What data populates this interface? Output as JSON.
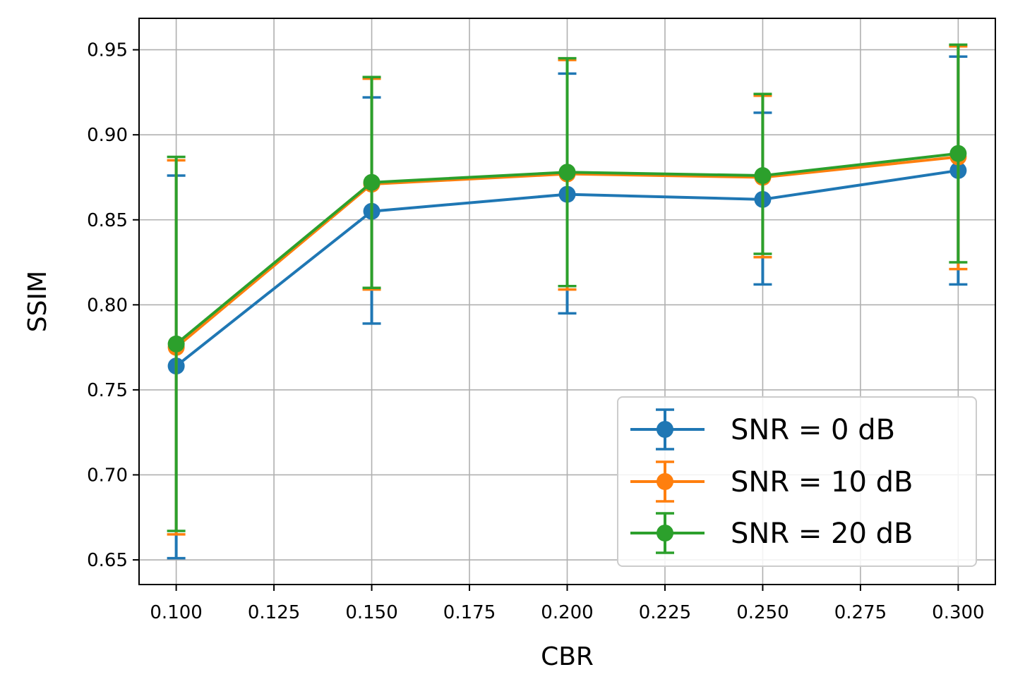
{
  "chart_data": {
    "type": "line",
    "title": "",
    "xlabel": "CBR",
    "ylabel": "SSIM",
    "xlim": [
      0.0905,
      0.3095
    ],
    "ylim": [
      0.6355,
      0.9685
    ],
    "xticks": [
      0.1,
      0.125,
      0.15,
      0.175,
      0.2,
      0.225,
      0.25,
      0.275,
      0.3
    ],
    "xtick_labels": [
      "0.100",
      "0.125",
      "0.150",
      "0.175",
      "0.200",
      "0.225",
      "0.250",
      "0.275",
      "0.300"
    ],
    "yticks": [
      0.65,
      0.7,
      0.75,
      0.8,
      0.85,
      0.9,
      0.95
    ],
    "ytick_labels": [
      "0.65",
      "0.70",
      "0.75",
      "0.80",
      "0.85",
      "0.90",
      "0.95"
    ],
    "grid": true,
    "legend_position": "lower-right",
    "x": [
      0.1,
      0.15,
      0.2,
      0.25,
      0.3
    ],
    "series": [
      {
        "name": "SNR = 0 dB",
        "color": "#1f77b4",
        "values": [
          0.764,
          0.855,
          0.865,
          0.862,
          0.879
        ],
        "err_low": [
          0.651,
          0.789,
          0.795,
          0.812,
          0.812
        ],
        "err_high": [
          0.876,
          0.922,
          0.936,
          0.913,
          0.946
        ]
      },
      {
        "name": "SNR = 10 dB",
        "color": "#ff7f0e",
        "values": [
          0.775,
          0.871,
          0.877,
          0.875,
          0.887
        ],
        "err_low": [
          0.665,
          0.809,
          0.809,
          0.828,
          0.821
        ],
        "err_high": [
          0.885,
          0.933,
          0.944,
          0.923,
          0.952
        ]
      },
      {
        "name": "SNR = 20 dB",
        "color": "#2ca02c",
        "values": [
          0.777,
          0.872,
          0.878,
          0.876,
          0.889
        ],
        "err_low": [
          0.667,
          0.81,
          0.811,
          0.83,
          0.825
        ],
        "err_high": [
          0.887,
          0.934,
          0.945,
          0.924,
          0.953
        ]
      }
    ]
  }
}
